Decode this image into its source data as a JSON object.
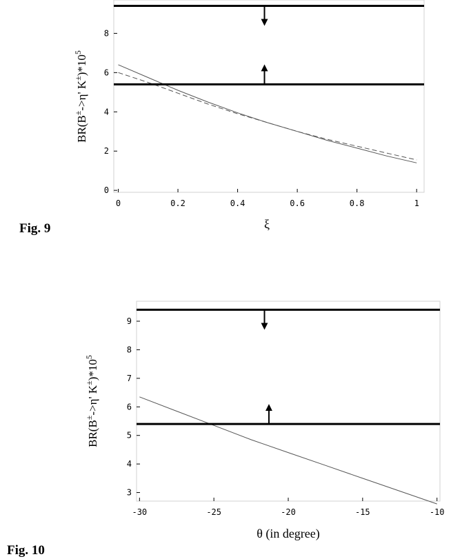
{
  "chart_data": [
    {
      "type": "line",
      "caption": "Fig. 9",
      "xlabel": "ξ",
      "ylabel": "BR(B^± -> η' K^±)*10^5",
      "xlim": [
        -0.015,
        1.025
      ],
      "ylim": [
        -0.1,
        9.7
      ],
      "xticks": [
        0,
        0.2,
        0.4,
        0.6,
        0.8,
        1
      ],
      "xtick_labels": [
        "0",
        "0.2",
        "0.4",
        "0.6",
        "0.8",
        "1"
      ],
      "yticks": [
        0,
        2,
        4,
        6,
        8
      ],
      "ytick_labels": [
        "0",
        "2",
        "4",
        "6",
        "8"
      ],
      "series": [
        {
          "style": "solid",
          "x": [
            0,
            0.1,
            0.2,
            0.3,
            0.4,
            0.5,
            0.6,
            0.7,
            0.8,
            0.9,
            1.0
          ],
          "y": [
            6.4,
            5.75,
            5.1,
            4.5,
            3.95,
            3.45,
            3.0,
            2.55,
            2.15,
            1.75,
            1.4
          ]
        },
        {
          "style": "dashed",
          "x": [
            0,
            0.1,
            0.2,
            0.3,
            0.4,
            0.5,
            0.6,
            0.7,
            0.8,
            0.9,
            1.0
          ],
          "y": [
            6.0,
            5.5,
            4.95,
            4.4,
            3.9,
            3.45,
            3.0,
            2.6,
            2.25,
            1.9,
            1.55
          ]
        }
      ],
      "bounds": [
        {
          "y": 9.4,
          "arrow": "down",
          "arrow_x": 0.49
        },
        {
          "y": 5.4,
          "arrow": "up",
          "arrow_x": 0.49
        }
      ]
    },
    {
      "type": "line",
      "caption": "Fig. 10",
      "xlabel": "θ (in degree)",
      "ylabel": "BR(B^± -> η' K^±)*10^5",
      "xlim": [
        -30.2,
        -9.8
      ],
      "ylim": [
        2.7,
        9.7
      ],
      "xticks": [
        -30,
        -25,
        -20,
        -15,
        -10
      ],
      "xtick_labels": [
        "-30",
        "-25",
        "-20",
        "-15",
        "-10"
      ],
      "yticks": [
        3,
        4,
        5,
        6,
        7,
        8,
        9
      ],
      "ytick_labels": [
        "3",
        "4",
        "5",
        "6",
        "7",
        "8",
        "9"
      ],
      "series": [
        {
          "style": "solid",
          "x": [
            -30,
            -27.5,
            -25,
            -22.5,
            -20,
            -17.5,
            -15,
            -12.5,
            -10
          ],
          "y": [
            6.35,
            5.85,
            5.35,
            4.85,
            4.4,
            3.95,
            3.5,
            3.05,
            2.6
          ]
        }
      ],
      "bounds": [
        {
          "y": 9.4,
          "arrow": "down",
          "arrow_x": -21.6
        },
        {
          "y": 5.4,
          "arrow": "up",
          "arrow_x": -21.3
        }
      ]
    }
  ]
}
